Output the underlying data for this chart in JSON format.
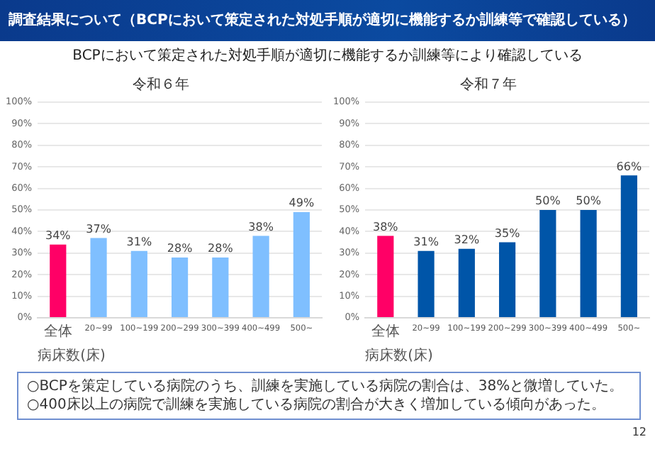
{
  "chart_data": [
    {
      "type": "other",
      "title": "調査結果について（BCPにおいて策定された対処手順が適切に機能するか訓練等で確認している）",
      "subtitle": "BCPにおいて策定された対処手順が適切に機能するか訓練等により確認している"
    },
    {
      "type": "bar",
      "title": "令和６年",
      "xlabel": "病床数(床)",
      "categories": [
        "全体",
        "20~99",
        "100~199",
        "200~299",
        "300~399",
        "400~499",
        "500~"
      ],
      "values": [
        34,
        37,
        31,
        28,
        28,
        38,
        49
      ],
      "value_labels": [
        "34%",
        "37%",
        "31%",
        "28%",
        "28%",
        "38%",
        "49%"
      ],
      "colors": [
        "#ff0066",
        "#7fbfff",
        "#7fbfff",
        "#7fbfff",
        "#7fbfff",
        "#7fbfff",
        "#7fbfff"
      ],
      "ylim": [
        0,
        100
      ],
      "yticks": [
        {
          "value": 0,
          "label": "0%"
        },
        {
          "value": 10,
          "label": "10%"
        },
        {
          "value": 20,
          "label": "20%"
        },
        {
          "value": 30,
          "label": "30%"
        },
        {
          "value": 40,
          "label": "40%"
        },
        {
          "value": 50,
          "label": "50%"
        },
        {
          "value": 60,
          "label": "60%"
        },
        {
          "value": 70,
          "label": "70%"
        },
        {
          "value": 80,
          "label": "80%"
        },
        {
          "value": 90,
          "label": "90%"
        },
        {
          "value": 100,
          "label": "100%"
        }
      ],
      "grid": "y"
    },
    {
      "type": "bar",
      "title": "令和７年",
      "xlabel": "病床数(床)",
      "categories": [
        "全体",
        "20~99",
        "100~199",
        "200~299",
        "300~399",
        "400~499",
        "500~"
      ],
      "values": [
        38,
        31,
        32,
        35,
        50,
        50,
        66
      ],
      "value_labels": [
        "38%",
        "31%",
        "32%",
        "35%",
        "50%",
        "50%",
        "66%"
      ],
      "colors": [
        "#ff0066",
        "#0055a8",
        "#0055a8",
        "#0055a8",
        "#0055a8",
        "#0055a8",
        "#0055a8"
      ],
      "ylim": [
        0,
        100
      ],
      "yticks": [
        {
          "value": 0,
          "label": "0%"
        },
        {
          "value": 10,
          "label": "10%"
        },
        {
          "value": 20,
          "label": "20%"
        },
        {
          "value": 30,
          "label": "30%"
        },
        {
          "value": 40,
          "label": "40%"
        },
        {
          "value": 50,
          "label": "50%"
        },
        {
          "value": 60,
          "label": "60%"
        },
        {
          "value": 70,
          "label": "70%"
        },
        {
          "value": 80,
          "label": "80%"
        },
        {
          "value": 90,
          "label": "90%"
        },
        {
          "value": 100,
          "label": "100%"
        }
      ],
      "grid": "y"
    },
    {
      "type": "other",
      "annotations": [
        "○BCPを策定している病院のうち、訓練を実施している病院の割合は、38%と微増していた。",
        "○400床以上の病院で訓練を実施している病院の割合が大きく増加している傾向があった。",
        "12"
      ]
    }
  ]
}
